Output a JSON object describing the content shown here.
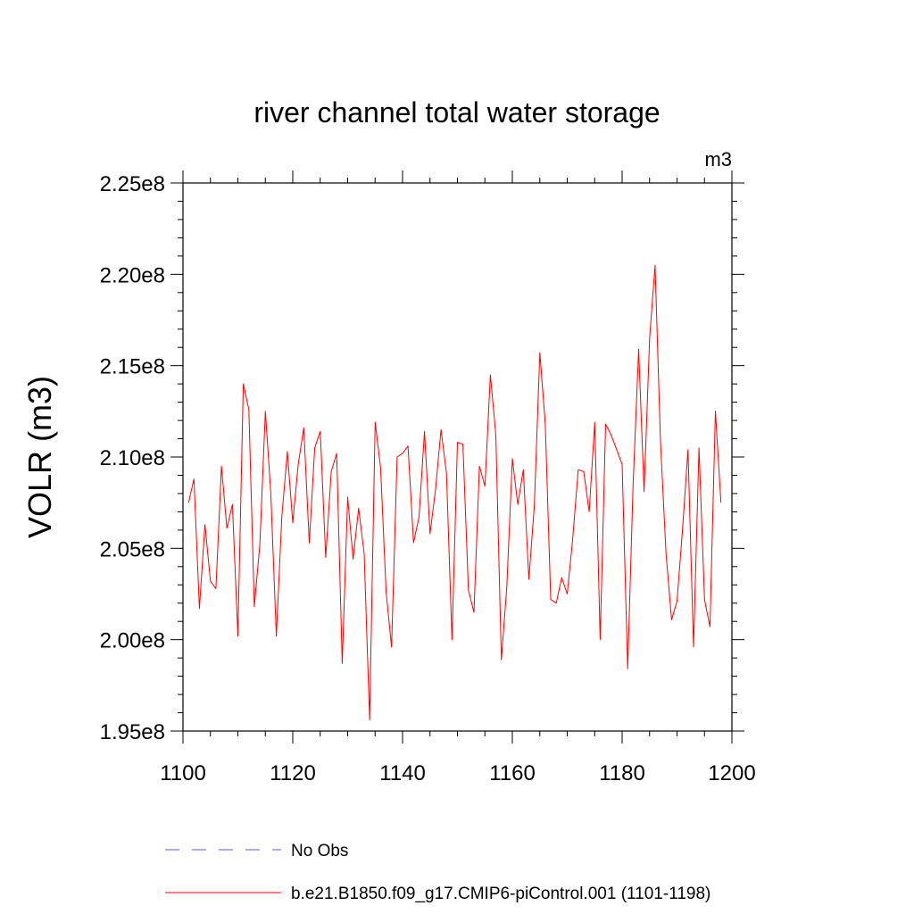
{
  "chart_data": {
    "type": "line",
    "title": "river channel total water storage",
    "units_label": "m3",
    "ylabel": "VOLR  (m3)",
    "xlabel": "",
    "xlim": [
      1100,
      1200
    ],
    "ylim": [
      195000000,
      225000000
    ],
    "x_ticks": [
      1100,
      1120,
      1140,
      1160,
      1180,
      1200
    ],
    "x_tick_labels": [
      "1100",
      "1120",
      "1140",
      "1160",
      "1180",
      "1200"
    ],
    "y_ticks": [
      195000000,
      200000000,
      205000000,
      210000000,
      215000000,
      220000000,
      225000000
    ],
    "y_tick_labels": [
      "1.95e8",
      "2.00e8",
      "2.05e8",
      "2.10e8",
      "2.15e8",
      "2.20e8",
      "2.25e8"
    ],
    "grid": false,
    "legend_position": "bottom",
    "legend": [
      {
        "label": "No Obs",
        "color": "#6a5acd",
        "dash": "dashed"
      },
      {
        "label": "b.e21.B1850.f09_g17.CMIP6-piControl.001 (1101-1198)",
        "color": "#ff0000",
        "dash": "solid"
      }
    ],
    "series": [
      {
        "name": "b.e21.B1850.f09_g17.CMIP6-piControl.001 (1101-1198)",
        "color": "#ff0000",
        "x": [
          1101,
          1102,
          1103,
          1104,
          1105,
          1106,
          1107,
          1108,
          1109,
          1110,
          1111,
          1112,
          1113,
          1114,
          1115,
          1116,
          1117,
          1118,
          1119,
          1120,
          1121,
          1122,
          1123,
          1124,
          1125,
          1126,
          1127,
          1128,
          1129,
          1130,
          1131,
          1132,
          1133,
          1134,
          1135,
          1136,
          1137,
          1138,
          1139,
          1140,
          1141,
          1142,
          1143,
          1144,
          1145,
          1146,
          1147,
          1148,
          1149,
          1150,
          1151,
          1152,
          1153,
          1154,
          1155,
          1156,
          1157,
          1158,
          1159,
          1160,
          1161,
          1162,
          1163,
          1164,
          1165,
          1166,
          1167,
          1168,
          1169,
          1170,
          1171,
          1172,
          1173,
          1174,
          1175,
          1176,
          1177,
          1178,
          1179,
          1180,
          1181,
          1182,
          1183,
          1184,
          1185,
          1186,
          1187,
          1188,
          1189,
          1190,
          1191,
          1192,
          1193,
          1194,
          1195,
          1196,
          1197,
          1198
        ],
        "y": [
          207.5,
          208.8,
          201.7,
          206.3,
          203.2,
          202.8,
          209.5,
          206.1,
          207.4,
          200.2,
          214.0,
          212.6,
          201.8,
          205.2,
          212.5,
          208.0,
          200.2,
          206.7,
          210.3,
          206.4,
          209.6,
          211.6,
          205.3,
          210.5,
          211.4,
          204.5,
          209.2,
          210.2,
          198.7,
          207.8,
          204.4,
          207.2,
          204.7,
          195.6,
          211.9,
          209.4,
          202.6,
          199.6,
          210.0,
          210.2,
          210.6,
          205.3,
          206.7,
          211.4,
          205.8,
          208.2,
          211.5,
          209.1,
          200.0,
          210.8,
          210.7,
          202.7,
          201.5,
          209.5,
          208.4,
          214.5,
          211.2,
          198.9,
          202.9,
          209.9,
          207.4,
          209.3,
          203.3,
          207.3,
          215.7,
          211.8,
          202.2,
          202.0,
          203.4,
          202.5,
          205.5,
          209.3,
          209.2,
          207.0,
          211.9,
          200.0,
          211.8,
          211.2,
          210.4,
          209.6,
          198.4,
          208.5,
          215.9,
          208.1,
          216.5,
          220.5,
          210.8,
          204.7,
          201.1,
          202.1,
          206.0,
          210.4,
          199.6,
          210.5,
          202.2,
          200.7,
          212.5,
          207.5
        ]
      }
    ]
  }
}
